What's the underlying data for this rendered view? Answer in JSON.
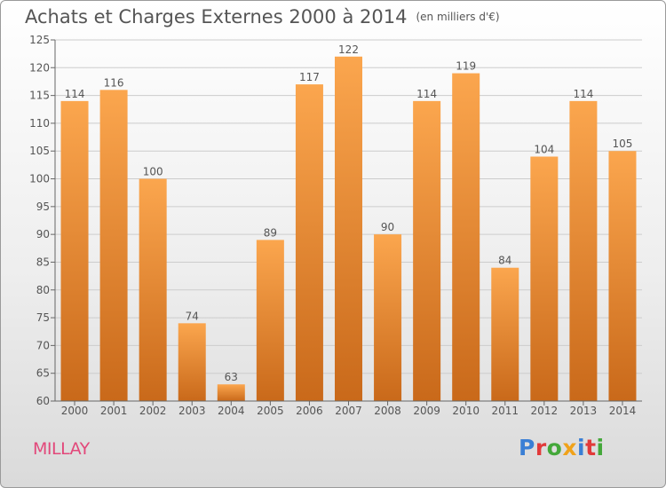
{
  "chart_data": {
    "type": "bar",
    "title": "Achats et Charges Externes 2000 à 2014",
    "unit": "(en milliers d'€)",
    "categories": [
      "2000",
      "2001",
      "2002",
      "2003",
      "2004",
      "2005",
      "2006",
      "2007",
      "2008",
      "2009",
      "2010",
      "2011",
      "2012",
      "2013",
      "2014"
    ],
    "values": [
      114,
      116,
      100,
      74,
      63,
      89,
      117,
      122,
      90,
      114,
      119,
      84,
      104,
      114,
      105
    ],
    "ylim": [
      60,
      125
    ],
    "yticks": [
      60,
      65,
      70,
      75,
      80,
      85,
      90,
      95,
      100,
      105,
      110,
      115,
      120,
      125
    ],
    "xlabel": "",
    "ylabel": "",
    "grid": "horizontal",
    "legend": "none"
  },
  "commune": "MILLAY",
  "logo": {
    "text": "Proxiti"
  },
  "colors": {
    "bar_top": "#fba64e",
    "bar_bottom": "#c9691a",
    "grid": "#cccccc",
    "axis": "#666666",
    "text": "#555555",
    "commune": "#e2487a",
    "logo": [
      "#3a7fd5",
      "#e23a3a",
      "#44a83a",
      "#f0a21a",
      "#3a7fd5",
      "#e23a3a",
      "#44a83a"
    ]
  }
}
